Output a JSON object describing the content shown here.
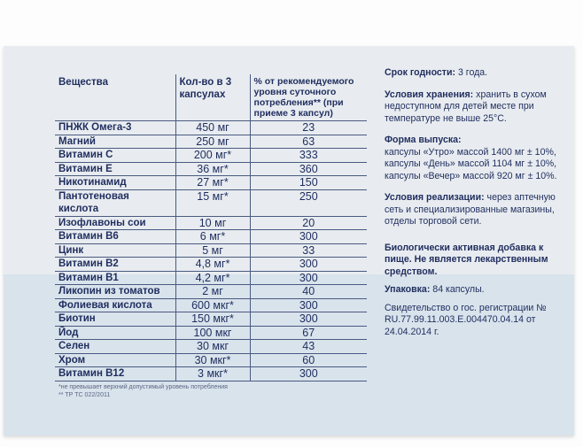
{
  "table": {
    "headers": [
      "Вещества",
      "Кол-во в 3 капсулах",
      "% от рекомендуемого уровня суточного потребления** (при приеме 3 капсул)"
    ],
    "rows": [
      [
        "ПНЖК Омега-3",
        "450 мг",
        "23"
      ],
      [
        "Магний",
        "250 мг",
        "63"
      ],
      [
        "Витамин С",
        "200 мг*",
        "333"
      ],
      [
        "Витамин Е",
        "36 мг*",
        "360"
      ],
      [
        "Никотинамид",
        "27 мг*",
        "150"
      ],
      [
        "Пантотеновая кислота",
        "15 мг*",
        "250"
      ],
      [
        "Изофлавоны сои",
        "10 мг",
        "20"
      ],
      [
        "Витамин B6",
        "6 мг*",
        "300"
      ],
      [
        "Цинк",
        "5 мг",
        "33"
      ],
      [
        "Витамин B2",
        "4,8 мг*",
        "300"
      ],
      [
        "Витамин B1",
        "4,2 мг*",
        "300"
      ],
      [
        "Ликопин из томатов",
        "2 мг",
        "40"
      ],
      [
        "Фолиевая кислота",
        "600 мкг*",
        "300"
      ],
      [
        "Биотин",
        "150 мкг*",
        "300"
      ],
      [
        "Йод",
        "100 мкг",
        "67"
      ],
      [
        "Селен",
        "30 мкг",
        "43"
      ],
      [
        "Хром",
        "30 мкг*",
        "60"
      ],
      [
        "Витамин B12",
        "3 мкг*",
        "300"
      ]
    ]
  },
  "footnotes": [
    "*не превышает верхний допустимый уровень потребления",
    "** ТР ТС 022/2011"
  ],
  "info": [
    {
      "label": "Срок годности:",
      "text": " 3 года."
    },
    {
      "label": "Условия хранения:",
      "text": " хранить в сухом недоступном для детей месте при температуре не выше 25°С."
    },
    {
      "label": "Форма выпуска:",
      "text": " капсулы «Утро» массой 1400 мг ± 10%, капсулы «День» массой 1104 мг ± 10%, капсулы «Вечер» массой 920 мг ± 10%."
    },
    {
      "label": "Условия реализации:",
      "text": " через аптечную сеть и специализированные магазины, отделы торговой сети."
    }
  ],
  "info2": {
    "bad": "Биологически активная добавка к пище. Не является лекарственным средством.",
    "pack_label": "Упаковка:",
    "pack": " 84 капсулы.",
    "cert": "Свидетельство о гос. регистрации № RU.77.99.11.003.E.004470.04.14 от 24.04.2014 г."
  }
}
